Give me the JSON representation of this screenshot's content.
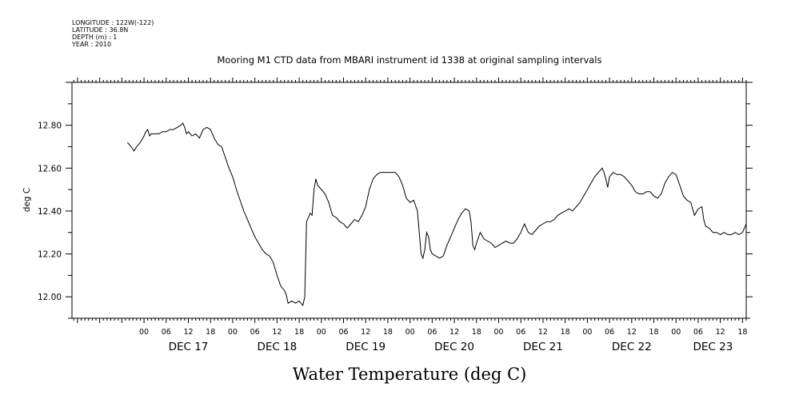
{
  "metadata": {
    "longitude": "LONGITUDE : 122W(-122)",
    "latitude": "LATITUDE : 36.8N",
    "depth": "DEPTH (m) : 1",
    "year": "YEAR : 2010"
  },
  "chart_data": {
    "type": "line",
    "title": "Mooring M1 CTD data from MBARI instrument id 1338 at original sampling intervals",
    "xlabel": "Water Temperature (deg C)",
    "ylabel": "deg C",
    "ylim": [
      11.9,
      13.0
    ],
    "y_ticks": [
      12.0,
      12.2,
      12.4,
      12.6,
      12.8
    ],
    "y_tick_labels": [
      "12.00",
      "12.20",
      "12.40",
      "12.60",
      "12.80"
    ],
    "xlim_hours_from_dec17_00": [
      -19.5,
      163
    ],
    "hour_tick_labels": [
      "00",
      "06",
      "12",
      "18",
      "00",
      "06",
      "12",
      "18",
      "00",
      "06",
      "12",
      "18",
      "00",
      "06",
      "12",
      "18",
      "00",
      "06",
      "12",
      "18",
      "00",
      "06",
      "12",
      "18",
      "00",
      "06",
      "12",
      "18"
    ],
    "hour_tick_positions": [
      0,
      6,
      12,
      18,
      24,
      30,
      36,
      42,
      48,
      54,
      60,
      66,
      72,
      78,
      84,
      90,
      96,
      102,
      108,
      114,
      120,
      126,
      132,
      138,
      144,
      150,
      156,
      162
    ],
    "day_labels": [
      "DEC 17",
      "DEC 18",
      "DEC 19",
      "DEC 20",
      "DEC 21",
      "DEC 22",
      "DEC 23"
    ],
    "day_label_positions": [
      12,
      36,
      60,
      84,
      108,
      132,
      154
    ],
    "grid": false,
    "series": [
      {
        "points": [
          [
            -4.5,
            12.72
          ],
          [
            -3.5,
            12.7
          ],
          [
            -2.7,
            12.68
          ],
          [
            -2,
            12.7
          ],
          [
            -1,
            12.72
          ],
          [
            0,
            12.75
          ],
          [
            0.5,
            12.77
          ],
          [
            1,
            12.78
          ],
          [
            1.5,
            12.75
          ],
          [
            2,
            12.76
          ],
          [
            3,
            12.76
          ],
          [
            4,
            12.76
          ],
          [
            5,
            12.77
          ],
          [
            6,
            12.77
          ],
          [
            7,
            12.78
          ],
          [
            8,
            12.78
          ],
          [
            9,
            12.79
          ],
          [
            10,
            12.8
          ],
          [
            10.5,
            12.81
          ],
          [
            11,
            12.79
          ],
          [
            11.5,
            12.76
          ],
          [
            12,
            12.77
          ],
          [
            13,
            12.75
          ],
          [
            14,
            12.76
          ],
          [
            15,
            12.74
          ],
          [
            16,
            12.78
          ],
          [
            17,
            12.79
          ],
          [
            18,
            12.78
          ],
          [
            19,
            12.74
          ],
          [
            20,
            12.71
          ],
          [
            21,
            12.7
          ],
          [
            22,
            12.65
          ],
          [
            23,
            12.6
          ],
          [
            24,
            12.56
          ],
          [
            25,
            12.5
          ],
          [
            26,
            12.45
          ],
          [
            27,
            12.4
          ],
          [
            28,
            12.36
          ],
          [
            29,
            12.32
          ],
          [
            30,
            12.28
          ],
          [
            31,
            12.25
          ],
          [
            32,
            12.22
          ],
          [
            33,
            12.2
          ],
          [
            34,
            12.19
          ],
          [
            35,
            12.16
          ],
          [
            36,
            12.1
          ],
          [
            37,
            12.05
          ],
          [
            38,
            12.03
          ],
          [
            38.5,
            12.01
          ],
          [
            39,
            11.97
          ],
          [
            40,
            11.98
          ],
          [
            41,
            11.97
          ],
          [
            42,
            11.98
          ],
          [
            43,
            11.96
          ],
          [
            43.5,
            12.0
          ],
          [
            44,
            12.35
          ],
          [
            45,
            12.39
          ],
          [
            45.5,
            12.38
          ],
          [
            46,
            12.5
          ],
          [
            46.5,
            12.55
          ],
          [
            47,
            12.52
          ],
          [
            48,
            12.5
          ],
          [
            49,
            12.48
          ],
          [
            50,
            12.44
          ],
          [
            51,
            12.38
          ],
          [
            52,
            12.37
          ],
          [
            53,
            12.35
          ],
          [
            54,
            12.34
          ],
          [
            55,
            12.32
          ],
          [
            56,
            12.34
          ],
          [
            57,
            12.36
          ],
          [
            58,
            12.35
          ],
          [
            59,
            12.38
          ],
          [
            60,
            12.42
          ],
          [
            61,
            12.5
          ],
          [
            62,
            12.55
          ],
          [
            63,
            12.57
          ],
          [
            64,
            12.58
          ],
          [
            66,
            12.58
          ],
          [
            68,
            12.58
          ],
          [
            69,
            12.56
          ],
          [
            70,
            12.52
          ],
          [
            71,
            12.46
          ],
          [
            72,
            12.44
          ],
          [
            73,
            12.45
          ],
          [
            74,
            12.4
          ],
          [
            74.5,
            12.3
          ],
          [
            75,
            12.2
          ],
          [
            75.5,
            12.18
          ],
          [
            76,
            12.22
          ],
          [
            76.5,
            12.3
          ],
          [
            77,
            12.28
          ],
          [
            77.5,
            12.22
          ],
          [
            78,
            12.2
          ],
          [
            79,
            12.19
          ],
          [
            80,
            12.18
          ],
          [
            81,
            12.19
          ],
          [
            82,
            12.24
          ],
          [
            83,
            12.28
          ],
          [
            84,
            12.32
          ],
          [
            85,
            12.36
          ],
          [
            86,
            12.39
          ],
          [
            87,
            12.41
          ],
          [
            88,
            12.4
          ],
          [
            88.5,
            12.35
          ],
          [
            89,
            12.24
          ],
          [
            89.5,
            12.22
          ],
          [
            90,
            12.25
          ],
          [
            91,
            12.3
          ],
          [
            92,
            12.27
          ],
          [
            93,
            12.26
          ],
          [
            94,
            12.25
          ],
          [
            95,
            12.23
          ],
          [
            96,
            12.24
          ],
          [
            97,
            12.25
          ],
          [
            98,
            12.26
          ],
          [
            99,
            12.25
          ],
          [
            100,
            12.25
          ],
          [
            101,
            12.27
          ],
          [
            102,
            12.3
          ],
          [
            103,
            12.34
          ],
          [
            104,
            12.3
          ],
          [
            105,
            12.29
          ],
          [
            106,
            12.31
          ],
          [
            107,
            12.33
          ],
          [
            108,
            12.34
          ],
          [
            109,
            12.35
          ],
          [
            110,
            12.35
          ],
          [
            111,
            12.36
          ],
          [
            112,
            12.38
          ],
          [
            113,
            12.39
          ],
          [
            114,
            12.4
          ],
          [
            115,
            12.41
          ],
          [
            116,
            12.4
          ],
          [
            117,
            12.42
          ],
          [
            118,
            12.44
          ],
          [
            119,
            12.47
          ],
          [
            120,
            12.5
          ],
          [
            121,
            12.53
          ],
          [
            122,
            12.56
          ],
          [
            123,
            12.58
          ],
          [
            124,
            12.6
          ],
          [
            124.5,
            12.58
          ],
          [
            125,
            12.55
          ],
          [
            125.5,
            12.51
          ],
          [
            126,
            12.56
          ],
          [
            127,
            12.58
          ],
          [
            128,
            12.57
          ],
          [
            129,
            12.57
          ],
          [
            130,
            12.56
          ],
          [
            131,
            12.54
          ],
          [
            132,
            12.52
          ],
          [
            133,
            12.49
          ],
          [
            134,
            12.48
          ],
          [
            135,
            12.48
          ],
          [
            136,
            12.49
          ],
          [
            137,
            12.49
          ],
          [
            138,
            12.47
          ],
          [
            139,
            12.46
          ],
          [
            140,
            12.48
          ],
          [
            141,
            12.53
          ],
          [
            142,
            12.56
          ],
          [
            143,
            12.58
          ],
          [
            144,
            12.57
          ],
          [
            145,
            12.52
          ],
          [
            146,
            12.47
          ],
          [
            147,
            12.45
          ],
          [
            148,
            12.44
          ],
          [
            149,
            12.38
          ],
          [
            150,
            12.41
          ],
          [
            151,
            12.42
          ],
          [
            151.5,
            12.36
          ],
          [
            152,
            12.33
          ],
          [
            153,
            12.32
          ],
          [
            154,
            12.3
          ],
          [
            155,
            12.3
          ],
          [
            156,
            12.29
          ],
          [
            157,
            12.3
          ],
          [
            158,
            12.29
          ],
          [
            159,
            12.29
          ],
          [
            160,
            12.3
          ],
          [
            161,
            12.29
          ],
          [
            162,
            12.3
          ],
          [
            162.5,
            12.32
          ],
          [
            163,
            12.34
          ]
        ]
      }
    ]
  }
}
